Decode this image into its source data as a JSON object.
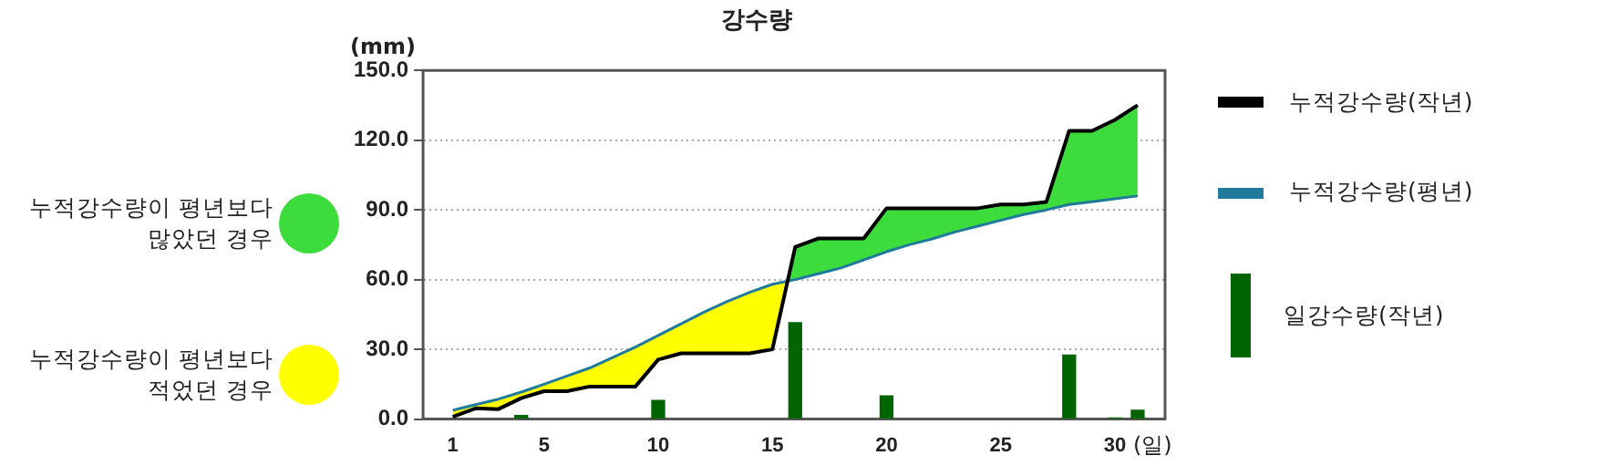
{
  "chart_data": {
    "type": "line",
    "title": "강수량",
    "ylabel": "(mm)",
    "xlabel": "(일)",
    "x": [
      1,
      2,
      3,
      4,
      5,
      6,
      7,
      8,
      9,
      10,
      11,
      12,
      13,
      14,
      15,
      16,
      17,
      18,
      19,
      20,
      21,
      22,
      23,
      24,
      25,
      26,
      27,
      28,
      29,
      30,
      31
    ],
    "series": [
      {
        "name": "누적강수량(작년)",
        "color": "#000000",
        "values": [
          1,
          4.6,
          4.3,
          9,
          12,
          12,
          14,
          14,
          14,
          25.6,
          28.3,
          28.3,
          28.3,
          28.3,
          30,
          74,
          77.7,
          77.7,
          77.7,
          90.7,
          90.7,
          90.7,
          90.7,
          90.7,
          92.3,
          92.3,
          93.4,
          124,
          124,
          128.7,
          135
        ]
      },
      {
        "name": "누적강수량(평년)",
        "color": "#1f7a9c",
        "values": [
          3.8,
          6.2,
          8.6,
          11.6,
          15,
          18.5,
          22,
          26.5,
          31,
          36,
          41,
          46,
          50.5,
          54.5,
          58,
          60,
          62.5,
          65,
          68.5,
          72,
          75,
          77.5,
          80.5,
          83,
          85.5,
          88,
          90,
          92.3,
          93.5,
          94.8,
          96
        ]
      },
      {
        "name": "일강수량(작년)",
        "type": "bar",
        "color": "#006400",
        "values": [
          null,
          null,
          null,
          1.5,
          null,
          null,
          null,
          null,
          null,
          8,
          null,
          null,
          null,
          null,
          null,
          41.5,
          null,
          null,
          null,
          10,
          null,
          null,
          null,
          null,
          null,
          null,
          null,
          27.5,
          null,
          0.5,
          3.8
        ]
      }
    ],
    "xlim": [
      -0.3,
      32.2
    ],
    "xticks": [
      1,
      5,
      10,
      15,
      20,
      25,
      30
    ],
    "ylim": [
      0,
      150
    ],
    "yticks": [
      {
        "value": 0,
        "label": "0.0"
      },
      {
        "value": 30,
        "label": "30.0"
      },
      {
        "value": 60,
        "label": "60.0"
      },
      {
        "value": 90,
        "label": "90.0"
      },
      {
        "value": 120,
        "label": "120.0"
      },
      {
        "value": 150,
        "label": "150.0"
      }
    ],
    "grid": "y",
    "legend": "right",
    "marker": "none",
    "line_style": "solid",
    "annotations": [
      "누적강수량이 평년보다\n많았던 경우",
      "누적강수량이 평년보다\n적었던 경우"
    ]
  }
}
